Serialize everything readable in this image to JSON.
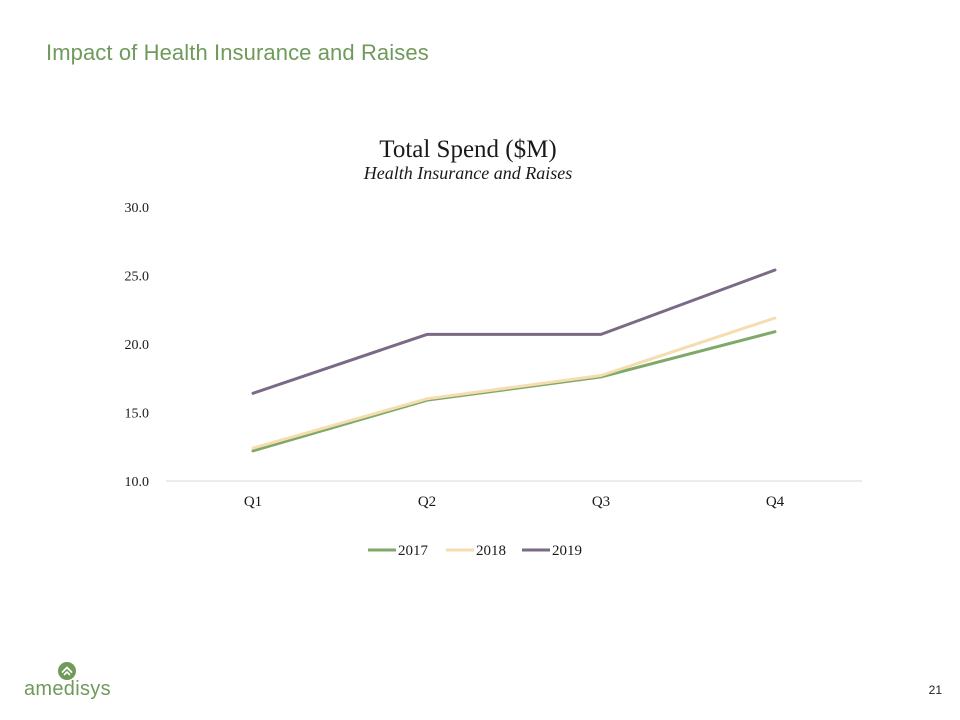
{
  "slide": {
    "title": "Impact of Health Insurance and Raises",
    "page_number": "21",
    "logo_text": "amedisys"
  },
  "colors": {
    "title": "#6f9a5b",
    "series_2017": "#7fa968",
    "series_2018": "#f5ddb0",
    "series_2019": "#7b6a86"
  },
  "chart_data": {
    "type": "line",
    "title": "Total Spend ($M)",
    "subtitle": "Health Insurance and Raises",
    "categories": [
      "Q1",
      "Q2",
      "Q3",
      "Q4"
    ],
    "series": [
      {
        "name": "2017",
        "values": [
          12.2,
          15.9,
          17.6,
          20.9
        ],
        "color": "#7fa968"
      },
      {
        "name": "2018",
        "values": [
          12.4,
          16.0,
          17.7,
          21.9
        ],
        "color": "#f5ddb0"
      },
      {
        "name": "2019",
        "values": [
          16.4,
          20.7,
          20.7,
          25.4
        ],
        "color": "#7b6a86"
      }
    ],
    "ylim": [
      10.0,
      30.0
    ],
    "yticks": [
      "10.0",
      "15.0",
      "20.0",
      "25.0",
      "30.0"
    ],
    "grid": false,
    "legend_position": "bottom"
  }
}
